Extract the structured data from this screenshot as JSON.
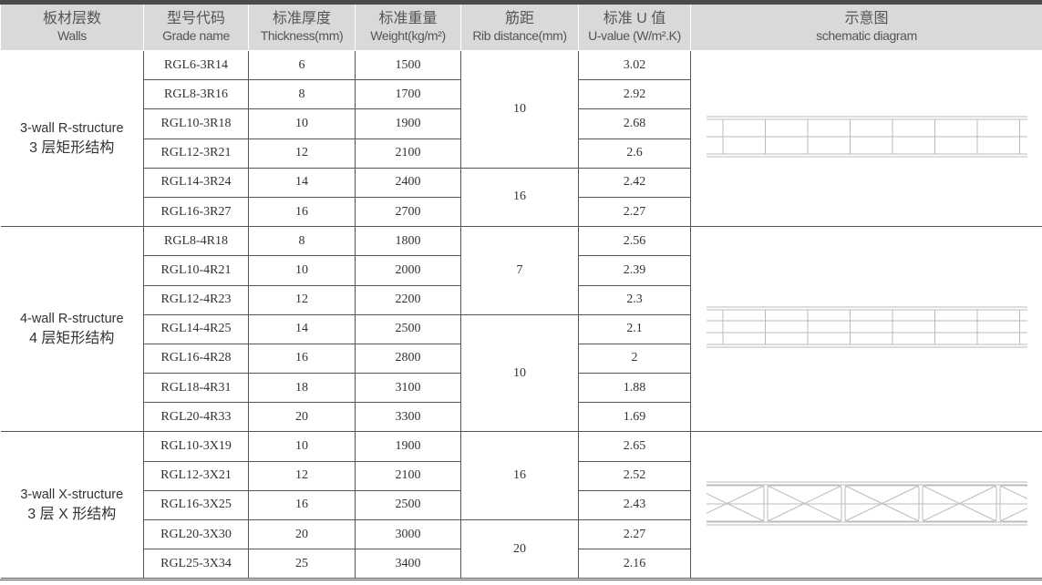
{
  "headers": [
    {
      "cn": "板材层数",
      "en": "Walls"
    },
    {
      "cn": "型号代码",
      "en": "Grade name"
    },
    {
      "cn": "标准厚度",
      "en": "Thickness(mm)"
    },
    {
      "cn": "标准重量",
      "en": "Weight(kg/m²)"
    },
    {
      "cn": "筋距",
      "en": "Rib distance(mm)"
    },
    {
      "cn": "标准 U 值",
      "en": "U-value (W/m².K)"
    },
    {
      "cn": "示意图",
      "en": "schematic diagram"
    }
  ],
  "groups": [
    {
      "en": "3-wall R-structure",
      "cn": "3 层矩形结构",
      "diagram": "rect-3",
      "rows": [
        {
          "grade": "RGL6-3R14",
          "thickness": "6",
          "weight": "1500",
          "rib": "10",
          "u": "3.02"
        },
        {
          "grade": "RGL8-3R16",
          "thickness": "8",
          "weight": "1700",
          "rib": "10",
          "u": "2.92"
        },
        {
          "grade": "RGL10-3R18",
          "thickness": "10",
          "weight": "1900",
          "rib": "10",
          "u": "2.68"
        },
        {
          "grade": "RGL12-3R21",
          "thickness": "12",
          "weight": "2100",
          "rib": "10",
          "u": "2.6"
        },
        {
          "grade": "RGL14-3R24",
          "thickness": "14",
          "weight": "2400",
          "rib": "16",
          "u": "2.42"
        },
        {
          "grade": "RGL16-3R27",
          "thickness": "16",
          "weight": "2700",
          "rib": "16",
          "u": "2.27"
        }
      ]
    },
    {
      "en": "4-wall R-structure",
      "cn": "4 层矩形结构",
      "diagram": "rect-4",
      "rows": [
        {
          "grade": "RGL8-4R18",
          "thickness": "8",
          "weight": "1800",
          "rib": "7",
          "u": "2.56"
        },
        {
          "grade": "RGL10-4R21",
          "thickness": "10",
          "weight": "2000",
          "rib": "7",
          "u": "2.39"
        },
        {
          "grade": "RGL12-4R23",
          "thickness": "12",
          "weight": "2200",
          "rib": "7",
          "u": "2.3"
        },
        {
          "grade": "RGL14-4R25",
          "thickness": "14",
          "weight": "2500",
          "rib": "10",
          "u": "2.1"
        },
        {
          "grade": "RGL16-4R28",
          "thickness": "16",
          "weight": "2800",
          "rib": "10",
          "u": "2"
        },
        {
          "grade": "RGL18-4R31",
          "thickness": "18",
          "weight": "3100",
          "rib": "10",
          "u": "1.88"
        },
        {
          "grade": "RGL20-4R33",
          "thickness": "20",
          "weight": "3300",
          "rib": "10",
          "u": "1.69"
        }
      ]
    },
    {
      "en": "3-wall X-structure",
      "cn": "3 层 X 形结构",
      "diagram": "x-3",
      "rows": [
        {
          "grade": "RGL10-3X19",
          "thickness": "10",
          "weight": "1900",
          "rib": "16",
          "u": "2.65"
        },
        {
          "grade": "RGL12-3X21",
          "thickness": "12",
          "weight": "2100",
          "rib": "16",
          "u": "2.52"
        },
        {
          "grade": "RGL16-3X25",
          "thickness": "16",
          "weight": "2500",
          "rib": "16",
          "u": "2.43"
        },
        {
          "grade": "RGL20-3X30",
          "thickness": "20",
          "weight": "3000",
          "rib": "20",
          "u": "2.27"
        },
        {
          "grade": "RGL25-3X34",
          "thickness": "25",
          "weight": "3400",
          "rib": "20",
          "u": "2.16"
        }
      ]
    }
  ]
}
